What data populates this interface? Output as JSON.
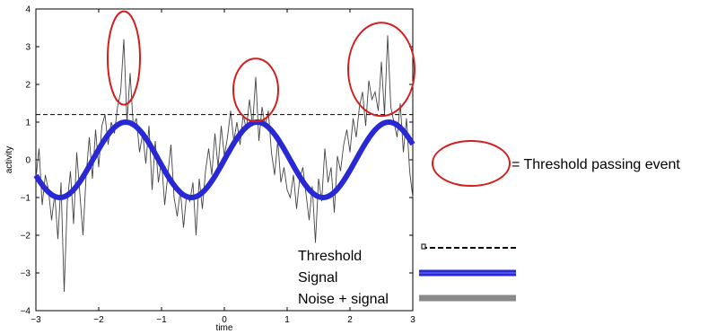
{
  "chart_data": {
    "type": "line",
    "title": "",
    "xlabel": "time",
    "ylabel": "activity",
    "xlim": [
      -3,
      3
    ],
    "ylim": [
      -4,
      4
    ],
    "xticks": [
      "−3",
      "−2",
      "−1",
      "0",
      "1",
      "2",
      "3"
    ],
    "yticks": [
      "−4",
      "−3",
      "−2",
      "−1",
      "0",
      "1",
      "2",
      "3",
      "4"
    ],
    "grid": false,
    "threshold": 1.2,
    "series": [
      {
        "name": "Noise + signal",
        "color": "#444444",
        "x": [
          -3.0,
          -2.95,
          -2.9,
          -2.85,
          -2.8,
          -2.75,
          -2.7,
          -2.65,
          -2.6,
          -2.55,
          -2.5,
          -2.45,
          -2.4,
          -2.35,
          -2.3,
          -2.25,
          -2.2,
          -2.15,
          -2.1,
          -2.05,
          -2.0,
          -1.95,
          -1.9,
          -1.85,
          -1.8,
          -1.75,
          -1.7,
          -1.65,
          -1.6,
          -1.55,
          -1.5,
          -1.45,
          -1.4,
          -1.35,
          -1.3,
          -1.25,
          -1.2,
          -1.15,
          -1.1,
          -1.05,
          -1.0,
          -0.95,
          -0.9,
          -0.85,
          -0.8,
          -0.75,
          -0.7,
          -0.65,
          -0.6,
          -0.55,
          -0.5,
          -0.45,
          -0.4,
          -0.35,
          -0.3,
          -0.25,
          -0.2,
          -0.15,
          -0.1,
          -0.05,
          0.0,
          0.05,
          0.1,
          0.15,
          0.2,
          0.25,
          0.3,
          0.35,
          0.4,
          0.45,
          0.5,
          0.55,
          0.6,
          0.65,
          0.7,
          0.75,
          0.8,
          0.85,
          0.9,
          0.95,
          1.0,
          1.05,
          1.1,
          1.15,
          1.2,
          1.25,
          1.3,
          1.35,
          1.4,
          1.45,
          1.5,
          1.55,
          1.6,
          1.65,
          1.7,
          1.75,
          1.8,
          1.85,
          1.9,
          1.95,
          2.0,
          2.05,
          2.1,
          2.15,
          2.2,
          2.25,
          2.3,
          2.35,
          2.4,
          2.45,
          2.5,
          2.55,
          2.6,
          2.65,
          2.7,
          2.75,
          2.8,
          2.85,
          2.9,
          2.95,
          3.0
        ],
        "y": [
          -0.5,
          0.3,
          -1.2,
          -0.4,
          -0.8,
          -1.6,
          -0.9,
          -2.1,
          -0.6,
          -3.5,
          -1.1,
          -0.3,
          -1.7,
          0.2,
          -0.9,
          -2.0,
          -0.4,
          0.6,
          -0.5,
          0.8,
          -0.2,
          0.9,
          1.2,
          0.4,
          1.0,
          0.7,
          1.4,
          1.8,
          3.2,
          1.0,
          2.3,
          0.9,
          1.1,
          0.2,
          0.7,
          -0.1,
          0.9,
          -0.8,
          0.5,
          -0.6,
          0.0,
          -1.2,
          -0.4,
          0.4,
          -1.0,
          -1.5,
          -0.8,
          -1.8,
          -0.9,
          -1.1,
          -0.6,
          -2.0,
          -0.5,
          -1.3,
          -0.3,
          0.3,
          -0.4,
          0.7,
          -0.2,
          0.9,
          0.1,
          0.6,
          1.3,
          0.5,
          1.0,
          0.4,
          1.2,
          0.8,
          1.6,
          0.9,
          2.2,
          0.5,
          1.4,
          0.9,
          1.3,
          0.2,
          -0.4,
          0.5,
          -0.6,
          -0.2,
          -0.8,
          -1.0,
          -0.4,
          -1.3,
          -0.5,
          -0.2,
          -0.9,
          -1.6,
          -0.7,
          -2.2,
          -0.5,
          -1.1,
          0.3,
          -0.6,
          -0.2,
          -1.4,
          0.1,
          -0.3,
          0.4,
          0.8,
          0.2,
          1.1,
          0.6,
          1.4,
          1.8,
          0.9,
          2.1,
          1.6,
          1.8,
          1.3,
          2.6,
          1.2,
          3.3,
          1.4,
          1.0,
          0.6,
          1.5,
          0.2,
          1.1,
          -0.3,
          -1.0
        ]
      },
      {
        "name": "Signal",
        "color": "#2828d4",
        "function": "sin(3x)",
        "x_range": [
          -3,
          3
        ]
      },
      {
        "name": "Threshold",
        "color": "#000000",
        "style": "dashed",
        "y": 1.2
      }
    ],
    "highlight_events": [
      {
        "center_x": -1.6,
        "center_y": 2.7
      },
      {
        "center_x": 0.5,
        "center_y": 1.85
      },
      {
        "center_x": 2.5,
        "center_y": 2.4
      }
    ],
    "highlight_color": "#d21e1e",
    "legend": {
      "placement": "bottom-right",
      "entries": [
        "Threshold",
        "Signal",
        "Noise + signal"
      ]
    },
    "annotation": "= Threshold passing event"
  }
}
